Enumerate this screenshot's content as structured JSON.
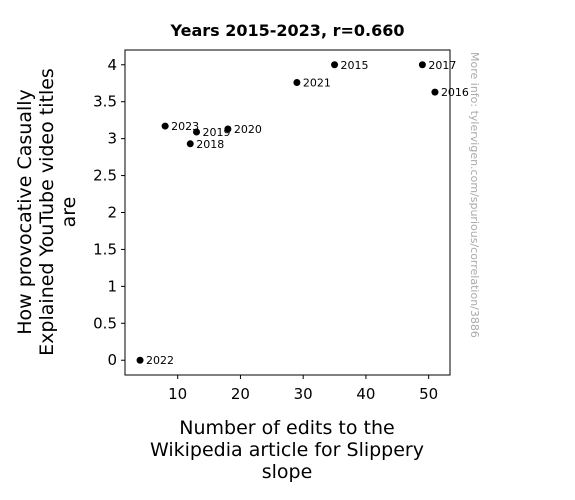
{
  "chart_data": {
    "type": "scatter",
    "title": "Years 2015-2023, r=0.660",
    "xlabel_lines": [
      "Number of edits to the",
      "Wikipedia article for Slippery",
      "slope"
    ],
    "ylabel_lines": [
      "How provocative Casually",
      "Explained YouTube video titles",
      "are"
    ],
    "xlim": [
      1.6,
      53.4
    ],
    "ylim": [
      -0.2,
      4.2
    ],
    "xticks": [
      10,
      20,
      30,
      40,
      50
    ],
    "yticks": [
      0,
      0.5,
      1,
      1.5,
      2,
      2.5,
      3,
      3.5,
      4
    ],
    "ytick_labels": [
      "0",
      "0.5",
      "1",
      "1.5",
      "2",
      "2.5",
      "3",
      "3.5",
      "4"
    ],
    "points": [
      {
        "label": "2015",
        "x": 35,
        "y": 4.0
      },
      {
        "label": "2016",
        "x": 51,
        "y": 3.63
      },
      {
        "label": "2017",
        "x": 49,
        "y": 4.0
      },
      {
        "label": "2018",
        "x": 12,
        "y": 2.93
      },
      {
        "label": "2019",
        "x": 13,
        "y": 3.09
      },
      {
        "label": "2020",
        "x": 18,
        "y": 3.13
      },
      {
        "label": "2021",
        "x": 29,
        "y": 3.76
      },
      {
        "label": "2022",
        "x": 4,
        "y": 0.0
      },
      {
        "label": "2023",
        "x": 8,
        "y": 3.17
      }
    ],
    "point_color": "#000000",
    "grid": false,
    "watermark": "More info: tylervigen.com/spurious/correlation/3886"
  }
}
